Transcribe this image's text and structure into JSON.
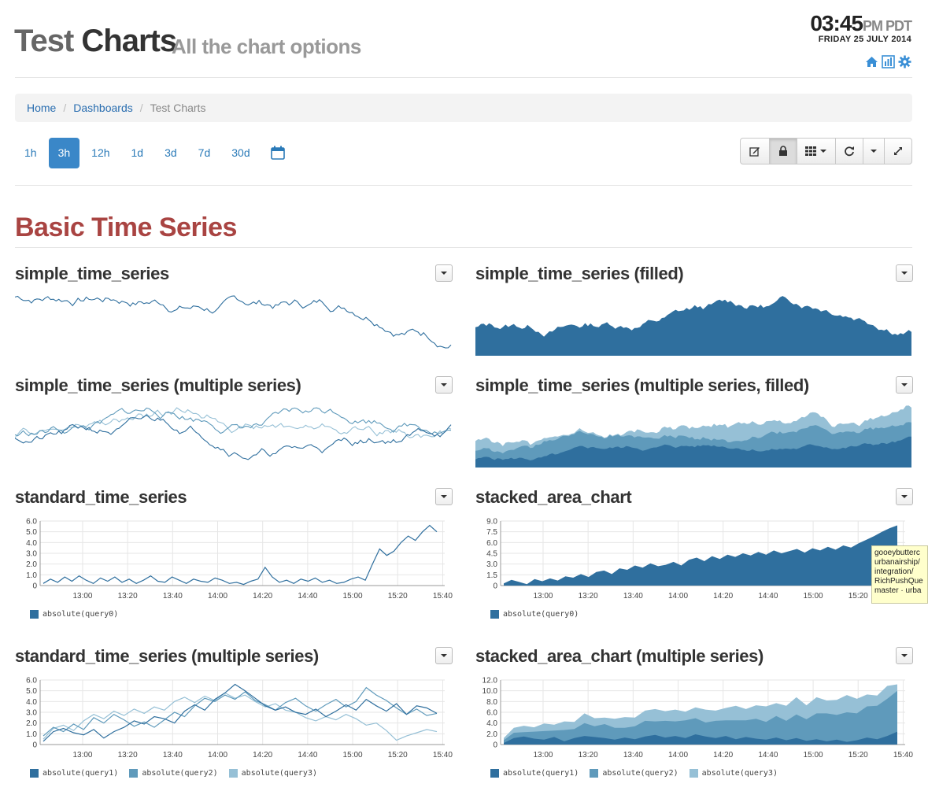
{
  "header": {
    "title_part1": "Test",
    "title_part2": "Charts",
    "subtitle": "All the chart options",
    "time": "03:45",
    "tz": "PM PDT",
    "date": "FRIDAY 25 JULY 2014",
    "icons": [
      "home-icon",
      "dashboard-icon",
      "gear-icon"
    ]
  },
  "breadcrumb": {
    "home": "Home",
    "dashboards": "Dashboards",
    "current": "Test Charts"
  },
  "ranges": {
    "items": [
      "1h",
      "3h",
      "12h",
      "1d",
      "3d",
      "7d",
      "30d"
    ],
    "active": "3h"
  },
  "toolbar": {
    "icons": [
      "edit-icon",
      "lock-icon",
      "grid-icon",
      "refresh-icon",
      "caret-icon",
      "fullscreen-icon"
    ]
  },
  "section": {
    "title": "Basic Time Series"
  },
  "colors": {
    "dark": "#2f6f9e",
    "mid": "#5f9abb",
    "light": "#96c0d6",
    "section": "#a94442"
  },
  "panels": {
    "p1": {
      "title": "simple_time_series"
    },
    "p2": {
      "title": "simple_time_series (filled)"
    },
    "p3": {
      "title": "simple_time_series (multiple series)"
    },
    "p4": {
      "title": "simple_time_series (multiple series, filled)"
    },
    "p5": {
      "title": "standard_time_series",
      "legend": [
        "absolute(query0)"
      ]
    },
    "p6": {
      "title": "stacked_area_chart",
      "legend": [
        "absolute(query0)"
      ]
    },
    "p7": {
      "title": "standard_time_series (multiple series)",
      "legend": [
        "absolute(query1)",
        "absolute(query2)",
        "absolute(query3)"
      ]
    },
    "p8": {
      "title": "stacked_area_chart (multiple series)",
      "legend": [
        "absolute(query1)",
        "absolute(query2)",
        "absolute(query3)"
      ]
    }
  },
  "tooltip": {
    "lines": [
      "gooeybutterc",
      "urbanairship/",
      "integration/",
      "RichPushQue",
      "master · urba"
    ]
  },
  "chart_data": [
    {
      "type": "line",
      "title": "standard_time_series",
      "x_ticks": [
        "13:00",
        "13:20",
        "13:40",
        "14:00",
        "14:20",
        "14:40",
        "15:00",
        "15:20",
        "15:40"
      ],
      "y_ticks": [
        "0",
        "1.0",
        "2.0",
        "3.0",
        "4.0",
        "5.0",
        "6.0"
      ],
      "ylim": [
        0,
        6
      ],
      "series": [
        {
          "name": "absolute(query0)",
          "values": [
            0.2,
            0.6,
            0.3,
            0.8,
            0.4,
            0.9,
            0.5,
            0.2,
            0.7,
            0.4,
            0.8,
            0.3,
            0.6,
            0.2,
            0.5,
            0.9,
            0.4,
            0.3,
            0.8,
            0.5,
            0.2,
            0.6,
            0.4,
            0.3,
            0.7,
            0.5,
            0.2,
            0.3,
            0.1,
            0.4,
            0.6,
            1.7,
            0.8,
            0.3,
            0.5,
            0.2,
            0.6,
            0.4,
            0.7,
            0.3,
            0.5,
            0.2,
            0.3,
            0.6,
            0.8,
            0.5,
            2.0,
            3.4,
            2.8,
            3.2,
            4.0,
            4.6,
            4.2,
            5.0,
            5.6,
            5.0
          ]
        }
      ]
    },
    {
      "type": "area",
      "title": "stacked_area_chart",
      "x_ticks": [
        "13:00",
        "13:20",
        "13:40",
        "14:00",
        "14:20",
        "14:40",
        "15:00",
        "15:20",
        "15:40"
      ],
      "y_ticks": [
        "0",
        "1.5",
        "3.0",
        "4.5",
        "6.0",
        "7.5",
        "9.0"
      ],
      "ylim": [
        0,
        9
      ],
      "series": [
        {
          "name": "absolute(query0)",
          "values": [
            0.3,
            0.8,
            0.5,
            0.2,
            0.9,
            0.6,
            1.0,
            0.7,
            1.3,
            1.1,
            1.6,
            1.2,
            1.9,
            2.1,
            1.6,
            2.4,
            2.2,
            2.8,
            2.5,
            3.1,
            2.7,
            2.9,
            3.3,
            2.8,
            3.6,
            3.9,
            3.4,
            4.1,
            3.7,
            4.3,
            4.0,
            4.5,
            4.2,
            4.7,
            4.3,
            4.9,
            4.5,
            4.8,
            5.1,
            4.6,
            5.2,
            4.9,
            5.4,
            5.0,
            5.6,
            5.3,
            5.9,
            6.4,
            6.9,
            7.5,
            8.0,
            8.4
          ]
        }
      ]
    },
    {
      "type": "line",
      "title": "standard_time_series (multiple series)",
      "x_ticks": [
        "13:00",
        "13:20",
        "13:40",
        "14:00",
        "14:20",
        "14:40",
        "15:00",
        "15:20",
        "15:40"
      ],
      "y_ticks": [
        "0",
        "1.0",
        "2.0",
        "3.0",
        "4.0",
        "5.0",
        "6.0"
      ],
      "ylim": [
        0,
        6
      ],
      "series": [
        {
          "name": "absolute(query1)",
          "values": [
            0.3,
            1.2,
            1.5,
            1.1,
            0.9,
            1.4,
            0.6,
            1.2,
            1.6,
            2.2,
            1.9,
            2.6,
            2.4,
            2.0,
            3.1,
            3.7,
            3.2,
            4.2,
            4.8,
            5.6,
            5.0,
            4.3,
            3.6,
            3.2,
            3.5,
            3.0,
            2.8,
            3.3,
            2.6,
            3.1,
            3.7,
            3.2,
            4.2,
            3.6,
            3.1,
            3.8,
            2.8,
            3.6,
            3.4,
            2.9
          ]
        },
        {
          "name": "absolute(query2)",
          "values": [
            0.8,
            1.6,
            1.2,
            1.9,
            1.4,
            2.5,
            2.0,
            2.8,
            2.3,
            1.7,
            2.1,
            1.6,
            2.3,
            3.0,
            2.6,
            3.6,
            4.3,
            4.0,
            4.6,
            4.2,
            4.9,
            4.1,
            3.7,
            3.2,
            3.9,
            4.3,
            3.6,
            3.1,
            3.7,
            4.2,
            3.5,
            4.0,
            5.3,
            4.6,
            4.1,
            3.4,
            2.8,
            3.3,
            2.7,
            2.9
          ]
        },
        {
          "name": "absolute(query3)",
          "values": [
            0.5,
            1.5,
            1.8,
            1.3,
            2.2,
            2.8,
            2.4,
            3.1,
            2.7,
            3.3,
            2.9,
            3.5,
            3.2,
            4.0,
            4.4,
            3.9,
            4.5,
            4.1,
            4.8,
            4.3,
            4.6,
            4.0,
            3.5,
            3.8,
            3.2,
            3.0,
            2.5,
            2.2,
            2.6,
            2.3,
            2.8,
            2.4,
            1.8,
            2.0,
            1.3,
            0.4,
            0.8,
            1.1,
            1.4,
            1.2
          ]
        }
      ]
    },
    {
      "type": "area",
      "title": "stacked_area_chart (multiple series)",
      "x_ticks": [
        "13:00",
        "13:20",
        "13:40",
        "14:00",
        "14:20",
        "14:40",
        "15:00",
        "15:20",
        "15:40"
      ],
      "y_ticks": [
        "0",
        "2.0",
        "4.0",
        "6.0",
        "8.0",
        "10.0",
        "12.0"
      ],
      "ylim": [
        0,
        12
      ],
      "series": [
        {
          "name": "absolute(query1)",
          "values": [
            0.3,
            1.2,
            1.5,
            1.1,
            0.9,
            1.4,
            0.6,
            1.2,
            1.6,
            1.4,
            1.2,
            0.9,
            1.3,
            1.0,
            1.5,
            1.8,
            1.3,
            1.6,
            1.2,
            1.9,
            1.5,
            1.2,
            1.6,
            1.0,
            1.4,
            1.1,
            0.9,
            1.3,
            0.8,
            1.2,
            0.7,
            1.0,
            0.6,
            0.9,
            0.5,
            0.8,
            1.3,
            1.0,
            1.6,
            2.4
          ]
        },
        {
          "name": "absolute(query2)",
          "values": [
            0.5,
            1.0,
            0.8,
            1.3,
            1.6,
            1.2,
            2.1,
            1.7,
            2.4,
            2.0,
            2.6,
            2.2,
            1.8,
            2.4,
            2.9,
            2.5,
            3.1,
            2.7,
            3.3,
            3.0,
            2.6,
            3.2,
            2.9,
            3.5,
            3.1,
            3.7,
            3.3,
            4.0,
            3.6,
            4.4,
            4.0,
            4.8,
            5.2,
            4.6,
            5.5,
            5.0,
            5.8,
            6.2,
            6.9,
            7.6
          ]
        },
        {
          "name": "absolute(query3)",
          "values": [
            0.4,
            0.9,
            1.2,
            0.8,
            1.4,
            1.1,
            1.6,
            1.3,
            1.8,
            1.5,
            1.2,
            1.7,
            2.0,
            1.6,
            1.9,
            2.3,
            1.8,
            2.2,
            1.6,
            2.0,
            2.4,
            1.9,
            2.3,
            2.7,
            2.1,
            2.5,
            2.9,
            2.4,
            2.8,
            3.2,
            2.6,
            3.0,
            2.4,
            2.8,
            3.2,
            2.7,
            2.2,
            1.9,
            2.4,
            1.2
          ]
        }
      ]
    }
  ]
}
